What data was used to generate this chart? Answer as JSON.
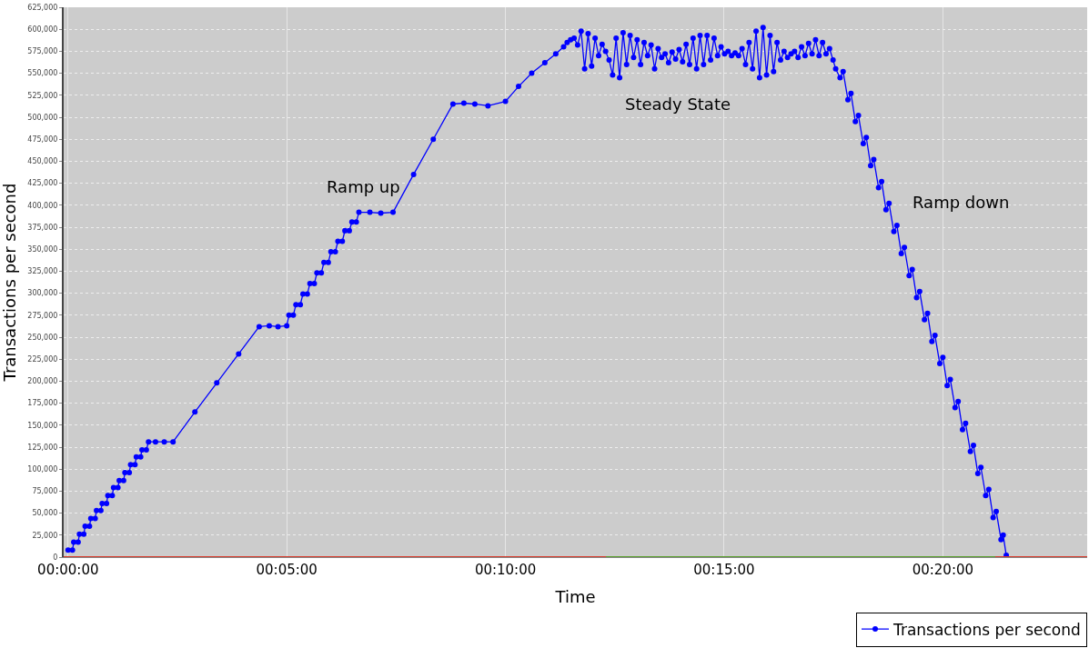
{
  "chart_data": {
    "type": "line",
    "xlabel": "Time",
    "ylabel": "Transactions per second",
    "xlim": [
      -0.1,
      23.3
    ],
    "ylim": [
      0,
      625000
    ],
    "xticks": [
      {
        "value": 0,
        "label": "00:00:00"
      },
      {
        "value": 5,
        "label": "00:05:00"
      },
      {
        "value": 10,
        "label": "00:10:00"
      },
      {
        "value": 15,
        "label": "00:15:00"
      },
      {
        "value": 20,
        "label": "00:20:00"
      }
    ],
    "yticks": [
      {
        "value": 0,
        "label": "0"
      },
      {
        "value": 25000,
        "label": "25,000"
      },
      {
        "value": 50000,
        "label": "50,000"
      },
      {
        "value": 75000,
        "label": "75,000"
      },
      {
        "value": 100000,
        "label": "100,000"
      },
      {
        "value": 125000,
        "label": "125,000"
      },
      {
        "value": 150000,
        "label": "150,000"
      },
      {
        "value": 175000,
        "label": "175,000"
      },
      {
        "value": 200000,
        "label": "200,000"
      },
      {
        "value": 225000,
        "label": "225,000"
      },
      {
        "value": 250000,
        "label": "250,000"
      },
      {
        "value": 275000,
        "label": "275,000"
      },
      {
        "value": 300000,
        "label": "300,000"
      },
      {
        "value": 325000,
        "label": "325,000"
      },
      {
        "value": 350000,
        "label": "350,000"
      },
      {
        "value": 375000,
        "label": "375,000"
      },
      {
        "value": 400000,
        "label": "400,000"
      },
      {
        "value": 425000,
        "label": "425,000"
      },
      {
        "value": 450000,
        "label": "450,000"
      },
      {
        "value": 475000,
        "label": "475,000"
      },
      {
        "value": 500000,
        "label": "500,000"
      },
      {
        "value": 525000,
        "label": "525,000"
      },
      {
        "value": 550000,
        "label": "550,000"
      },
      {
        "value": 575000,
        "label": "575,000"
      },
      {
        "value": 600000,
        "label": "600,000"
      },
      {
        "value": 625000,
        "label": "625,000"
      }
    ],
    "grid": true,
    "legend": "bottom right",
    "marker": "circle",
    "line_style": "solid",
    "annotations": [
      "Ramp up",
      "Steady State",
      "Ramp down"
    ],
    "series": [
      {
        "name": "Transactions per second",
        "color": "#0000ff",
        "x": [
          0,
          0.1,
          0.13,
          0.23,
          0.26,
          0.36,
          0.39,
          0.49,
          0.52,
          0.62,
          0.65,
          0.75,
          0.78,
          0.88,
          0.91,
          1.01,
          1.04,
          1.14,
          1.17,
          1.27,
          1.3,
          1.4,
          1.43,
          1.53,
          1.56,
          1.66,
          1.69,
          1.79,
          1.84,
          2.0,
          2.2,
          2.4,
          2.9,
          3.4,
          3.9,
          4.37,
          4.6,
          4.8,
          5.0,
          5.05,
          5.15,
          5.21,
          5.31,
          5.37,
          5.47,
          5.53,
          5.63,
          5.69,
          5.79,
          5.85,
          5.95,
          6.01,
          6.11,
          6.17,
          6.27,
          6.33,
          6.43,
          6.49,
          6.59,
          6.65,
          6.9,
          7.15,
          7.43,
          7.9,
          8.35,
          8.8,
          9.05,
          9.3,
          9.6,
          10.0,
          10.3,
          10.6,
          10.9,
          11.15,
          11.33,
          11.41,
          11.49,
          11.57,
          11.65,
          11.73,
          11.81,
          11.89,
          11.97,
          12.05,
          12.13,
          12.21,
          12.29,
          12.37,
          12.45,
          12.53,
          12.61,
          12.69,
          12.77,
          12.85,
          12.93,
          13.01,
          13.09,
          13.17,
          13.25,
          13.33,
          13.41,
          13.49,
          13.57,
          13.65,
          13.73,
          13.81,
          13.89,
          13.97,
          14.05,
          14.13,
          14.21,
          14.29,
          14.37,
          14.45,
          14.53,
          14.61,
          14.69,
          14.77,
          14.85,
          14.93,
          15.01,
          15.09,
          15.17,
          15.25,
          15.33,
          15.41,
          15.49,
          15.57,
          15.65,
          15.73,
          15.81,
          15.89,
          15.97,
          16.05,
          16.13,
          16.21,
          16.29,
          16.37,
          16.45,
          16.53,
          16.61,
          16.69,
          16.77,
          16.85,
          16.93,
          17.01,
          17.09,
          17.17,
          17.25,
          17.33,
          17.41,
          17.49,
          17.55,
          17.65,
          17.72,
          17.83,
          17.9,
          18.0,
          18.07,
          18.18,
          18.25,
          18.35,
          18.42,
          18.53,
          18.6,
          18.7,
          18.77,
          18.88,
          18.95,
          19.05,
          19.12,
          19.23,
          19.3,
          19.4,
          19.47,
          19.58,
          19.65,
          19.75,
          19.82,
          19.93,
          20.0,
          20.1,
          20.17,
          20.28,
          20.35,
          20.45,
          20.52,
          20.63,
          20.7,
          20.8,
          20.87,
          20.98,
          21.05,
          21.15,
          21.22,
          21.33,
          21.38,
          21.45
        ],
        "values": [
          8000,
          8000,
          17000,
          17000,
          26000,
          26000,
          35000,
          35000,
          44000,
          44000,
          53000,
          53000,
          61000,
          61000,
          70000,
          70000,
          79000,
          79000,
          87000,
          87000,
          96000,
          96000,
          105000,
          105000,
          114000,
          114000,
          122000,
          122000,
          131000,
          131000,
          131000,
          131000,
          165000,
          198000,
          231000,
          262000,
          263000,
          262000,
          263000,
          275000,
          275000,
          287000,
          287000,
          299000,
          299000,
          311000,
          311000,
          323000,
          323000,
          335000,
          335000,
          347000,
          347000,
          359000,
          359000,
          371000,
          371000,
          381000,
          381000,
          392000,
          392000,
          391000,
          392000,
          435000,
          475000,
          515000,
          516000,
          515000,
          513000,
          518000,
          535000,
          550000,
          562000,
          572000,
          580000,
          585000,
          588000,
          590000,
          582000,
          598000,
          555000,
          595000,
          558000,
          590000,
          570000,
          583000,
          575000,
          565000,
          548000,
          590000,
          545000,
          596000,
          560000,
          593000,
          568000,
          588000,
          560000,
          585000,
          570000,
          582000,
          555000,
          578000,
          568000,
          572000,
          562000,
          574000,
          566000,
          577000,
          563000,
          583000,
          560000,
          590000,
          555000,
          593000,
          560000,
          593000,
          565000,
          590000,
          570000,
          580000,
          572000,
          575000,
          570000,
          573000,
          570000,
          578000,
          560000,
          585000,
          555000,
          598000,
          545000,
          602000,
          548000,
          593000,
          552000,
          585000,
          565000,
          575000,
          568000,
          572000,
          575000,
          568000,
          580000,
          570000,
          584000,
          572000,
          588000,
          570000,
          585000,
          572000,
          578000,
          565000,
          555000,
          545000,
          552000,
          520000,
          527000,
          495000,
          502000,
          470000,
          477000,
          445000,
          452000,
          420000,
          427000,
          395000,
          402000,
          370000,
          377000,
          345000,
          352000,
          320000,
          327000,
          295000,
          302000,
          270000,
          277000,
          245000,
          252000,
          220000,
          227000,
          195000,
          202000,
          170000,
          177000,
          145000,
          152000,
          120000,
          127000,
          95000,
          102000,
          70000,
          77000,
          45000,
          52000,
          20000,
          25000,
          2000
        ]
      },
      {
        "color": "#d93a2b",
        "marker": "none",
        "x": [
          -0.1,
          23.3
        ],
        "values": [
          0,
          0
        ]
      },
      {
        "color": "#5aa02c",
        "marker": "none",
        "x": [
          12.3,
          21.2
        ],
        "values": [
          0,
          0
        ]
      }
    ]
  }
}
